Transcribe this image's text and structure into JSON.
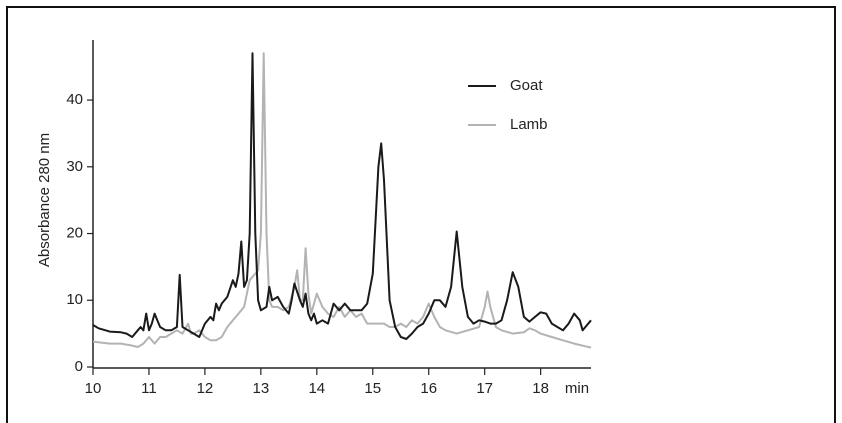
{
  "chart_data": {
    "type": "line",
    "y_label": "Absorbance 280 nm",
    "x_label": "min",
    "xlim": [
      10,
      18.9
    ],
    "ylim": [
      0,
      49
    ],
    "xticks": [
      10,
      11,
      12,
      13,
      14,
      15,
      16,
      17,
      18
    ],
    "yticks": [
      0,
      10,
      20,
      30,
      40
    ],
    "legend": "upper-right",
    "series": [
      {
        "name": "Goat",
        "color": "#1a1a1a",
        "x": [
          10.0,
          10.1,
          10.3,
          10.5,
          10.6,
          10.7,
          10.8,
          10.85,
          10.9,
          10.95,
          11.0,
          11.05,
          11.1,
          11.15,
          11.2,
          11.3,
          11.4,
          11.5,
          11.55,
          11.6,
          11.7,
          11.8,
          11.9,
          12.0,
          12.1,
          12.15,
          12.2,
          12.25,
          12.3,
          12.4,
          12.5,
          12.55,
          12.6,
          12.65,
          12.7,
          12.75,
          12.8,
          12.85,
          12.9,
          12.95,
          13.0,
          13.1,
          13.15,
          13.2,
          13.3,
          13.4,
          13.5,
          13.55,
          13.6,
          13.7,
          13.75,
          13.8,
          13.85,
          13.9,
          13.95,
          14.0,
          14.1,
          14.2,
          14.3,
          14.4,
          14.5,
          14.6,
          14.7,
          14.8,
          14.9,
          15.0,
          15.1,
          15.15,
          15.2,
          15.3,
          15.4,
          15.5,
          15.6,
          15.7,
          15.8,
          15.9,
          16.0,
          16.1,
          16.2,
          16.3,
          16.4,
          16.5,
          16.6,
          16.7,
          16.8,
          16.9,
          17.0,
          17.1,
          17.2,
          17.3,
          17.4,
          17.5,
          17.6,
          17.7,
          17.8,
          17.9,
          18.0,
          18.1,
          18.2,
          18.3,
          18.4,
          18.5,
          18.6,
          18.7,
          18.75,
          18.8,
          18.9
        ],
        "values": [
          6.3,
          5.8,
          5.3,
          5.2,
          5.0,
          4.5,
          5.5,
          6,
          5.5,
          8,
          5.5,
          6.5,
          8,
          7,
          6,
          5.5,
          5.5,
          6,
          13.8,
          6,
          5.5,
          5,
          4.5,
          6.5,
          7.5,
          7,
          9.5,
          8.5,
          9.5,
          10.5,
          13,
          12,
          14,
          18.8,
          12,
          13,
          20,
          47,
          20,
          10,
          8.5,
          9,
          12,
          10,
          10.5,
          9,
          8,
          10,
          12.5,
          10,
          9,
          11,
          8,
          7,
          8,
          6.5,
          7,
          6.5,
          9.5,
          8.5,
          9.5,
          8.5,
          8.5,
          8.5,
          9.5,
          14,
          30,
          33.5,
          28,
          10,
          6,
          4.5,
          4.2,
          5,
          6,
          6.5,
          8,
          10,
          10,
          9,
          12,
          20.3,
          12,
          7.5,
          6.5,
          7,
          6.8,
          6.5,
          6.5,
          7,
          10,
          14.2,
          12,
          7.5,
          6.8,
          7.5,
          8.2,
          8,
          6.5,
          6,
          5.5,
          6.5,
          8,
          7,
          5.5,
          6,
          7
        ]
      },
      {
        "name": "Lamb",
        "color": "#b3b3b3",
        "x": [
          10.0,
          10.3,
          10.5,
          10.7,
          10.8,
          10.9,
          11.0,
          11.1,
          11.2,
          11.3,
          11.4,
          11.5,
          11.6,
          11.7,
          11.75,
          11.8,
          11.9,
          12.0,
          12.1,
          12.2,
          12.3,
          12.4,
          12.5,
          12.6,
          12.7,
          12.8,
          12.9,
          12.95,
          13.0,
          13.05,
          13.1,
          13.15,
          13.2,
          13.3,
          13.4,
          13.5,
          13.6,
          13.65,
          13.7,
          13.75,
          13.8,
          13.85,
          13.9,
          14.0,
          14.1,
          14.2,
          14.3,
          14.4,
          14.5,
          14.6,
          14.7,
          14.8,
          14.9,
          15.0,
          15.1,
          15.2,
          15.3,
          15.4,
          15.5,
          15.6,
          15.7,
          15.8,
          15.9,
          16.0,
          16.1,
          16.2,
          16.3,
          16.5,
          16.7,
          16.9,
          17.0,
          17.05,
          17.1,
          17.2,
          17.3,
          17.5,
          17.7,
          17.8,
          17.9,
          18.0,
          18.2,
          18.4,
          18.6,
          18.8,
          18.9
        ],
        "values": [
          3.8,
          3.5,
          3.5,
          3.2,
          3.0,
          3.5,
          4.5,
          3.5,
          4.5,
          4.5,
          5.0,
          5.5,
          5.0,
          6.5,
          5,
          5,
          5.5,
          4.5,
          4,
          4.0,
          4.5,
          6,
          7,
          8,
          9,
          13,
          14,
          14.5,
          20,
          47,
          20,
          10,
          9,
          9,
          8.5,
          9,
          12,
          14.5,
          10,
          10,
          17.8,
          11,
          8,
          11,
          9,
          8,
          7.5,
          9,
          7.5,
          8.5,
          7.5,
          8,
          6.5,
          6.5,
          6.5,
          6.5,
          6,
          6,
          6.5,
          6,
          7,
          6.5,
          7.5,
          9.5,
          7.5,
          6,
          5.5,
          5,
          5.5,
          6,
          9,
          11.3,
          9,
          6,
          5.5,
          5,
          5.2,
          5.8,
          5.5,
          5,
          4.5,
          4,
          3.5,
          3.1,
          2.9
        ]
      }
    ]
  }
}
